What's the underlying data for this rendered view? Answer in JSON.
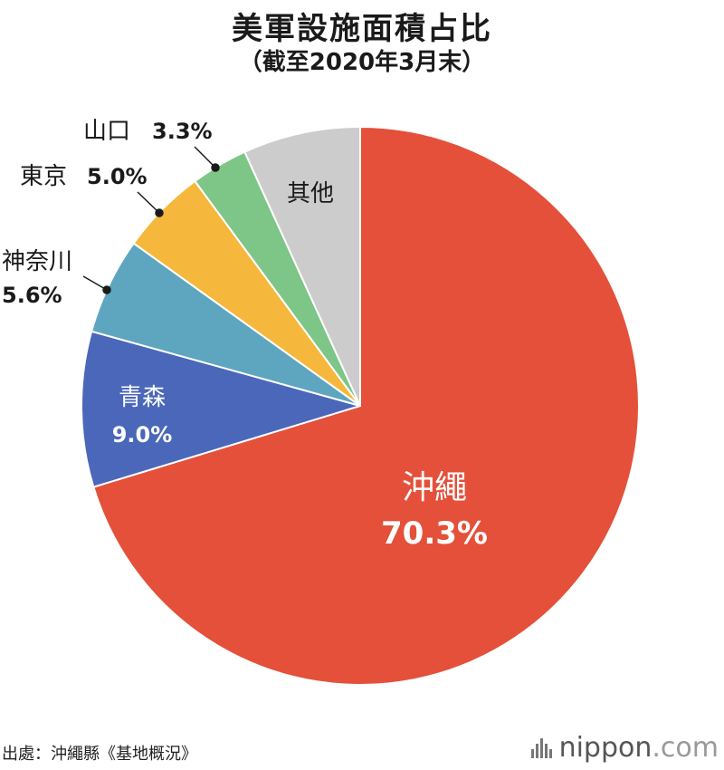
{
  "title": "美軍設施面積占比",
  "subtitle": "（截至2020年3月末）",
  "source": "出處：沖繩縣《基地概況》",
  "brand": {
    "name": "nippon",
    "tld": ".com"
  },
  "chart_data": {
    "type": "pie",
    "title": "美軍設施面積占比",
    "subtitle": "（截至2020年3月末）",
    "start_angle_deg": 0,
    "direction": "clockwise",
    "slices": [
      {
        "label": "沖繩",
        "value_label": "70.3%",
        "value": 70.3,
        "color": "#e4503a"
      },
      {
        "label": "青森",
        "value_label": "9.0%",
        "value": 9.0,
        "color": "#4a67b9"
      },
      {
        "label": "神奈川",
        "value_label": "5.6%",
        "value": 5.6,
        "color": "#5ea6bf"
      },
      {
        "label": "東京",
        "value_label": "5.0%",
        "value": 5.0,
        "color": "#f5b83d"
      },
      {
        "label": "山口",
        "value_label": "3.3%",
        "value": 3.3,
        "color": "#7dc688"
      },
      {
        "label": "其他",
        "value_label": "",
        "value": 6.8,
        "color": "#cccccc"
      }
    ]
  }
}
